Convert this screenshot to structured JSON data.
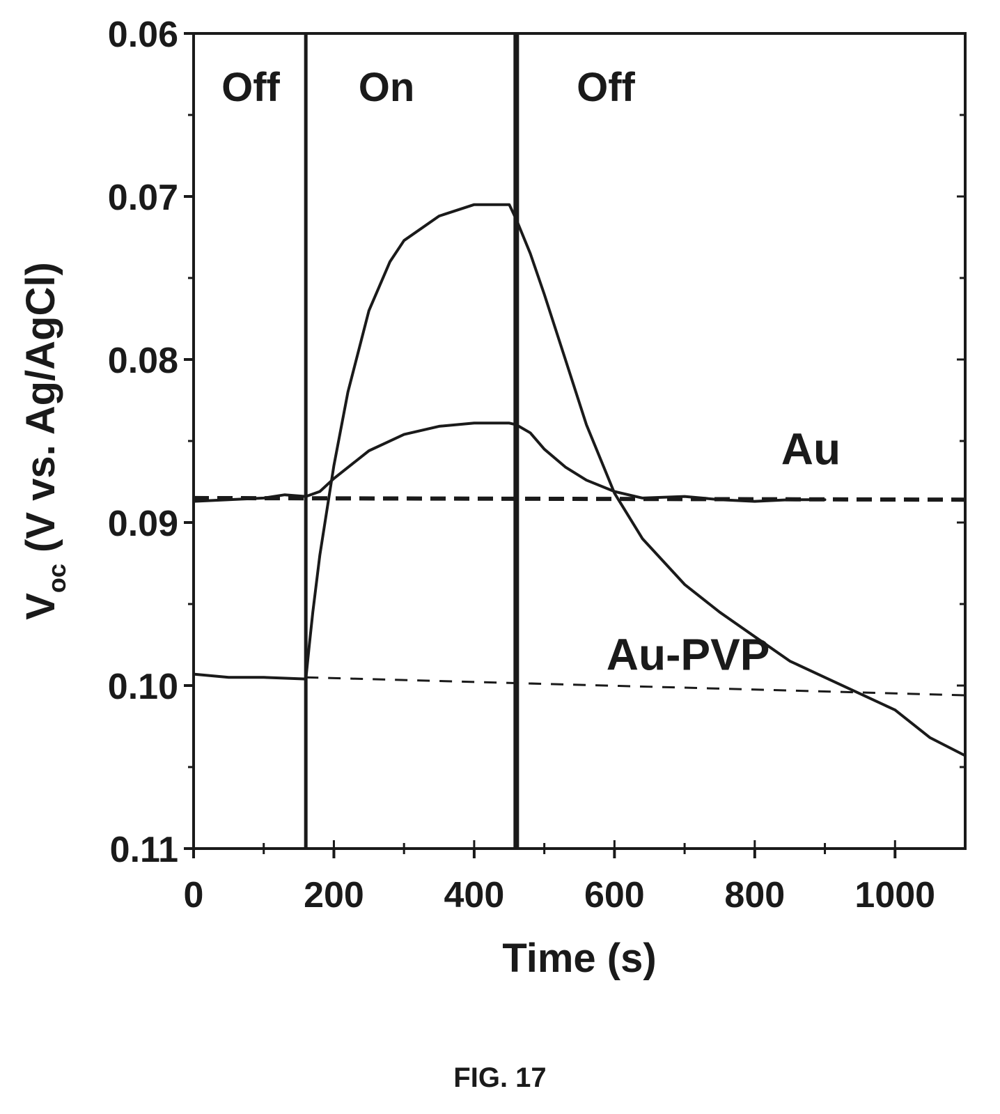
{
  "figure_caption": "FIG. 17",
  "chart_data": {
    "type": "line",
    "xlabel": "Time (s)",
    "ylabel_main": "V",
    "ylabel_sub": "oc",
    "ylabel_rest": " (V vs. Ag/AgCl)",
    "xlim": [
      0,
      1100
    ],
    "ylim": [
      0.06,
      0.11
    ],
    "y_inverted": true,
    "xticks": [
      0,
      200,
      400,
      600,
      800,
      1000
    ],
    "xtick_labels": [
      "0",
      "200",
      "400",
      "600",
      "800",
      "1000"
    ],
    "yticks": [
      0.06,
      0.07,
      0.08,
      0.09,
      0.1,
      0.11
    ],
    "ytick_labels": [
      "0.06",
      "0.07",
      "0.08",
      "0.09",
      "0.10",
      "0.11"
    ],
    "grid": false,
    "regions": [
      {
        "label": "Off",
        "x_start": 0,
        "x_end": 160
      },
      {
        "label": "On",
        "x_start": 160,
        "x_end": 460
      },
      {
        "label": "Off",
        "x_start": 460,
        "x_end": 1100
      }
    ],
    "region_boundaries": [
      160,
      460
    ],
    "series": [
      {
        "name": "Au",
        "style": "solid",
        "x": [
          0,
          50,
          100,
          130,
          160,
          180,
          200,
          250,
          300,
          350,
          400,
          450,
          460,
          480,
          500,
          530,
          560,
          600,
          640,
          700,
          750,
          800,
          850,
          900
        ],
        "y": [
          0.0887,
          0.0886,
          0.0885,
          0.0883,
          0.0884,
          0.0881,
          0.0873,
          0.0856,
          0.0846,
          0.0841,
          0.0839,
          0.0839,
          0.084,
          0.0845,
          0.0855,
          0.0866,
          0.0874,
          0.0881,
          0.0885,
          0.0884,
          0.0886,
          0.0887,
          0.0886,
          0.0886
        ]
      },
      {
        "name": "Au-PVP",
        "style": "solid",
        "x": [
          0,
          50,
          100,
          160,
          165,
          170,
          180,
          200,
          220,
          250,
          280,
          300,
          350,
          400,
          450,
          460,
          480,
          500,
          530,
          560,
          600,
          640,
          700,
          750,
          800,
          850,
          900,
          950,
          1000,
          1050,
          1100
        ],
        "y": [
          0.0993,
          0.0995,
          0.0995,
          0.0996,
          0.0975,
          0.0955,
          0.092,
          0.0865,
          0.082,
          0.077,
          0.074,
          0.0727,
          0.0712,
          0.0705,
          0.0705,
          0.0714,
          0.0735,
          0.076,
          0.08,
          0.084,
          0.0882,
          0.091,
          0.0938,
          0.0955,
          0.097,
          0.0985,
          0.0995,
          0.1005,
          0.1015,
          0.1032,
          0.1043
        ]
      },
      {
        "name": "Au baseline",
        "style": "dashed-heavy",
        "x": [
          0,
          1100
        ],
        "y": [
          0.0885,
          0.0886
        ]
      },
      {
        "name": "Au-PVP baseline",
        "style": "dashed-light",
        "x": [
          160,
          1100
        ],
        "y": [
          0.0995,
          0.1006
        ]
      }
    ],
    "annotations": [
      {
        "text": "Au",
        "x": 880,
        "y": 0.0855
      },
      {
        "text": "Au-PVP",
        "x": 705,
        "y": 0.0981
      }
    ]
  }
}
